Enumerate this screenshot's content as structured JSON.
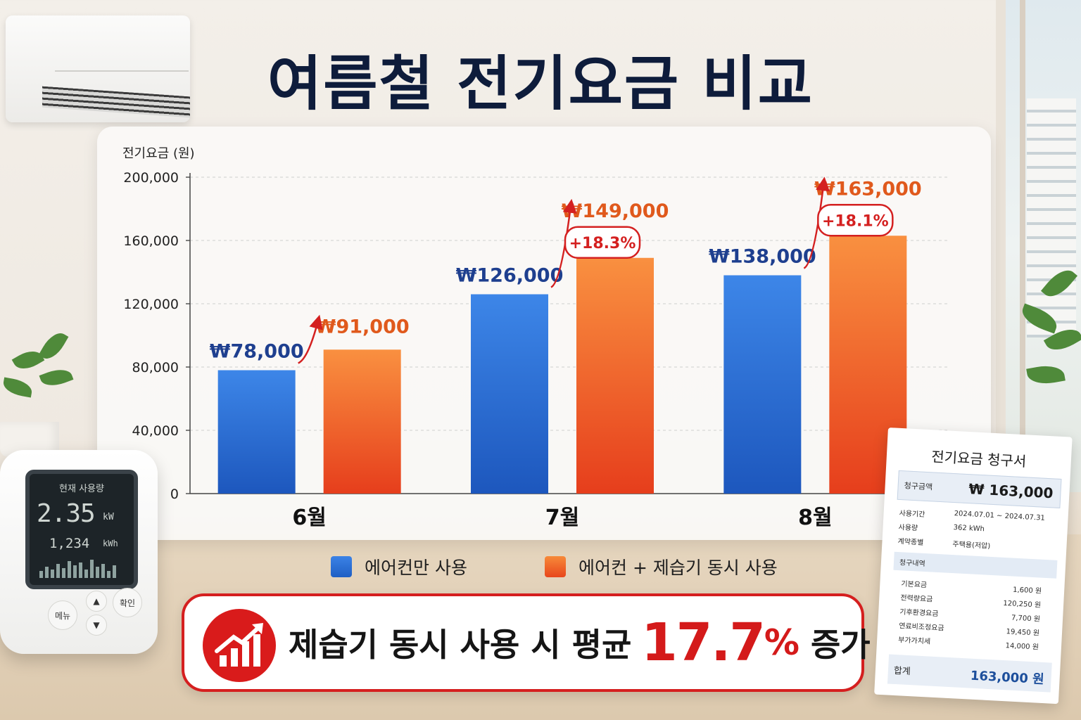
{
  "title": "여름철 전기요금 비교",
  "chart_data": {
    "type": "bar",
    "ylabel": "전기요금 (원)",
    "ylim": [
      0,
      200000
    ],
    "yticks": [
      "200,000",
      "160,000",
      "120,000",
      "80,000",
      "40,000",
      "0"
    ],
    "categories": [
      "6월",
      "7월",
      "8월"
    ],
    "series": [
      {
        "name": "에어컨만 사용",
        "values": [
          78000,
          126000,
          138000
        ],
        "labels": [
          "₩78,000",
          "₩126,000",
          "₩138,000"
        ],
        "color": "#2f6fd6"
      },
      {
        "name": "에어컨 + 제습기 동시 사용",
        "values": [
          91000,
          149000,
          163000
        ],
        "labels": [
          "₩91,000",
          "₩149,000",
          "₩163,000"
        ],
        "color": "#f2601a"
      }
    ],
    "increase_badges": [
      "+18.3%",
      "+18.1%"
    ],
    "grid": true
  },
  "legend": {
    "items": [
      {
        "label": "에어컨만 사용",
        "color": "#2f6fd6"
      },
      {
        "label": "에어컨 + 제습기 동시 사용",
        "color": "#f2601a"
      }
    ]
  },
  "callout": {
    "text_before": "제습기 동시 사용 시 평균",
    "percent": "17.7",
    "percent_sign": "%",
    "text_after": "증가",
    "icon": "trend-up-icon",
    "accent": "#d41a1a"
  },
  "meter": {
    "header": "현재 사용량",
    "value": "2.35",
    "unit": "kW",
    "sub_value": "1,234",
    "sub_unit": "kWh",
    "btn_menu": "메뉴",
    "btn_ok": "확인",
    "icon_up": "chevron-up-icon",
    "icon_down": "chevron-down-icon"
  },
  "bill": {
    "title": "전기요금 청구서",
    "amount_label": "청구금액",
    "amount": "₩ 163,000",
    "period_label": "사용기간",
    "period": "2024.07.01 ~ 2024.07.31",
    "usage_label": "사용량",
    "usage": "362 kWh",
    "contract_label": "계약종별",
    "contract": "주택용(저압)",
    "section_label": "청구내역",
    "items": [
      {
        "label": "기본요금",
        "value": "1,600 원"
      },
      {
        "label": "전력량요금",
        "value": "120,250 원"
      },
      {
        "label": "기후환경요금",
        "value": "7,700 원"
      },
      {
        "label": "연료비조정요금",
        "value": "19,450 원"
      },
      {
        "label": "부가가치세",
        "value": "14,000 원"
      }
    ],
    "total_label": "합계",
    "total": "163,000 원"
  }
}
